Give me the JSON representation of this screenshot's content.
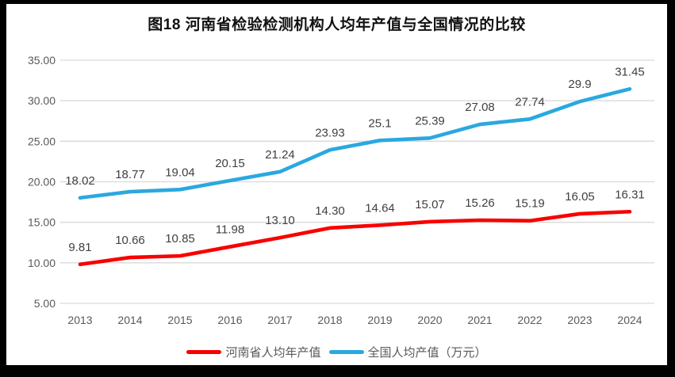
{
  "window": {
    "frame_color": "#000000",
    "background_color": "#ffffff"
  },
  "title": "图18  河南省检验检测机构人均年产值与全国情况的比较",
  "chart_data": {
    "type": "line",
    "title": "图18  河南省检验检测机构人均年产值与全国情况的比较",
    "categories": [
      "2013",
      "2014",
      "2015",
      "2016",
      "2017",
      "2018",
      "2019",
      "2020",
      "2021",
      "2022",
      "2023",
      "2024"
    ],
    "series": [
      {
        "name": "河南省人均年产值",
        "color": "#f80000",
        "values": [
          9.81,
          10.66,
          10.85,
          11.98,
          13.1,
          14.3,
          14.64,
          15.07,
          15.26,
          15.19,
          16.05,
          16.31
        ],
        "labels": [
          "9.81",
          "10.66",
          "10.85",
          "11.98",
          "13.10",
          "14.30",
          "14.64",
          "15.07",
          "15.26",
          "15.19",
          "16.05",
          "16.31"
        ]
      },
      {
        "name": "全国人均产值（万元）",
        "color": "#2aa8e0",
        "values": [
          18.02,
          18.77,
          19.04,
          20.15,
          21.24,
          23.93,
          25.1,
          25.39,
          27.08,
          27.74,
          29.9,
          31.45
        ],
        "labels": [
          "18.02",
          "18.77",
          "19.04",
          "20.15",
          "21.24",
          "23.93",
          "25.1",
          "25.39",
          "27.08",
          "27.74",
          "29.9",
          "31.45"
        ]
      }
    ],
    "xlabel": "",
    "ylabel": "",
    "ylim": [
      5,
      35
    ],
    "ytick_step": 5,
    "ytick_labels": [
      "5.00",
      "10.00",
      "15.00",
      "20.00",
      "25.00",
      "30.00",
      "35.00"
    ],
    "grid": true,
    "legend_position": "bottom"
  },
  "styles": {
    "grid_color": "#d9d9d9",
    "tick_label_color": "#595959",
    "data_label_color": "#404040",
    "legend_text_color": "#595959",
    "title_color": "#111111"
  }
}
